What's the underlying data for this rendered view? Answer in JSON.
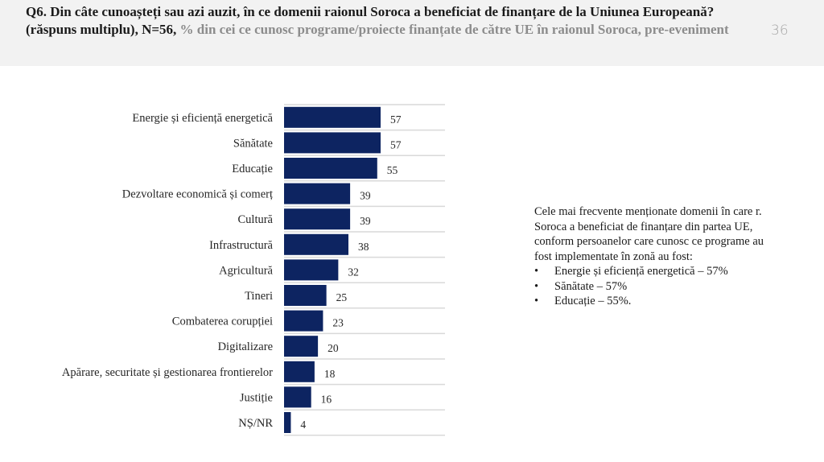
{
  "header": {
    "title_main": "Q6. Din câte cunoașteți sau azi auzit, în ce domenii raionul Soroca a beneficiat de finanțare  de la Uniunea Europeană? (răspuns multiplu), N=56, ",
    "title_sub": "% din cei ce cunosc programe/proiecte finanțate de către UE în raionul Soroca, pre-eveniment",
    "slide_number": "36"
  },
  "colors": {
    "bar": "#0d2461",
    "header_bg": "#f2f2f2",
    "subtitle": "#8c8c8c"
  },
  "chart_data": {
    "type": "bar",
    "orientation": "horizontal",
    "title": "",
    "xlabel": "",
    "ylabel": "",
    "xlim": [
      0,
      95
    ],
    "grid": true,
    "legend": "none",
    "categories": [
      "Energie și eficiență energetică",
      "Sănătate",
      "Educație",
      "Dezvoltare economică și comerț",
      "Cultură",
      "Infrastructură",
      "Agricultură",
      "Tineri",
      "Combaterea corupției",
      "Digitalizare",
      "Apărare, securitate și gestionarea frontierelor",
      "Justiție",
      "NȘ/NR"
    ],
    "values": [
      57,
      57,
      55,
      39,
      39,
      38,
      32,
      25,
      23,
      20,
      18,
      16,
      4
    ]
  },
  "note": {
    "intro": "Cele mai frecvente menționate domenii în care r. Soroca a beneficiat de finanțare din partea UE, conform persoanelor care cunosc ce programe au fost implementate în zonă au fost:",
    "bullets": [
      "Energie și eficiență energetică – 57%",
      "Sănătate – 57%",
      "Educație – 55%."
    ]
  }
}
